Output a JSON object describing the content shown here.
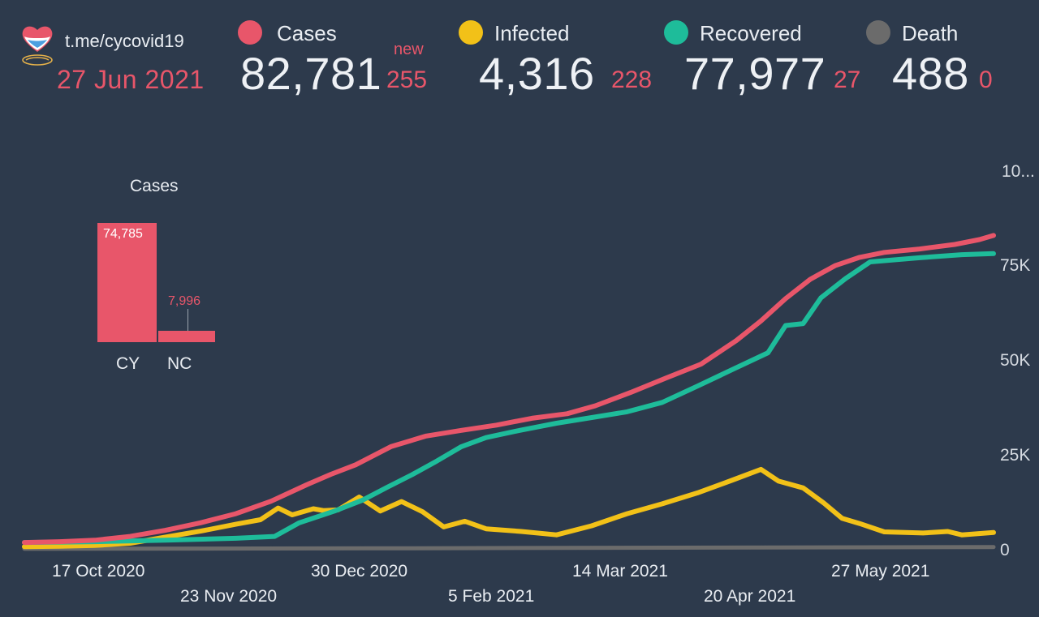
{
  "header": {
    "handle": "t.me/cycovid19",
    "date": "27 Jun 2021",
    "new_word": "new"
  },
  "stats": [
    {
      "key": "cases",
      "label": "Cases",
      "value": "82,781",
      "delta": "255",
      "color": "#e8566a"
    },
    {
      "key": "infected",
      "label": "Infected",
      "value": "4,316",
      "delta": "228",
      "color": "#f2c118"
    },
    {
      "key": "recovered",
      "label": "Recovered",
      "value": "77,977",
      "delta": "27",
      "color": "#1ebc9a"
    },
    {
      "key": "death",
      "label": "Death",
      "value": "488",
      "delta": "0",
      "color": "#6b6b6b"
    }
  ],
  "chart_data": [
    {
      "type": "bar",
      "title": "Cases",
      "categories": [
        "CY",
        "NC"
      ],
      "values": [
        74785,
        7996
      ],
      "value_labels": [
        "74,785",
        "7,996"
      ],
      "color": "#e8566a"
    },
    {
      "type": "line",
      "x_ticks": [
        "17 Oct 2020",
        "23 Nov 2020",
        "30 Dec 2020",
        "5 Feb 2021",
        "14 Mar 2021",
        "20 Apr 2021",
        "27 May 2021"
      ],
      "y_ticks": [
        "0",
        "25K",
        "50K",
        "75K",
        "10..."
      ],
      "ylim": [
        0,
        100000
      ],
      "xlim": [
        "2020-09-25",
        "2021-06-27"
      ],
      "grid": false,
      "series": [
        {
          "name": "Cases",
          "color": "#e8566a",
          "points": [
            [
              "2020-09-25",
              1700
            ],
            [
              "2020-10-05",
              1900
            ],
            [
              "2020-10-15",
              2300
            ],
            [
              "2020-10-25",
              3300
            ],
            [
              "2020-11-04",
              4900
            ],
            [
              "2020-11-14",
              6900
            ],
            [
              "2020-11-24",
              9300
            ],
            [
              "2020-12-04",
              12600
            ],
            [
              "2020-12-14",
              16900
            ],
            [
              "2020-12-21",
              19700
            ],
            [
              "2020-12-28",
              22200
            ],
            [
              "2021-01-07",
              27000
            ],
            [
              "2021-01-17",
              29800
            ],
            [
              "2021-01-27",
              31300
            ],
            [
              "2021-02-06",
              32700
            ],
            [
              "2021-02-16",
              34500
            ],
            [
              "2021-02-26",
              35700
            ],
            [
              "2021-03-06",
              37800
            ],
            [
              "2021-03-16",
              41300
            ],
            [
              "2021-03-26",
              45100
            ],
            [
              "2021-04-05",
              48800
            ],
            [
              "2021-04-15",
              55000
            ],
            [
              "2021-04-22",
              60200
            ],
            [
              "2021-04-29",
              66100
            ],
            [
              "2021-05-06",
              71200
            ],
            [
              "2021-05-13",
              74800
            ],
            [
              "2021-05-20",
              77000
            ],
            [
              "2021-05-27",
              78300
            ],
            [
              "2021-06-06",
              79200
            ],
            [
              "2021-06-16",
              80400
            ],
            [
              "2021-06-23",
              81700
            ],
            [
              "2021-06-27",
              82781
            ]
          ]
        },
        {
          "name": "Infected",
          "color": "#f2c118",
          "points": [
            [
              "2020-09-25",
              600
            ],
            [
              "2020-10-05",
              700
            ],
            [
              "2020-10-15",
              900
            ],
            [
              "2020-10-25",
              1500
            ],
            [
              "2020-11-04",
              3100
            ],
            [
              "2020-11-14",
              4700
            ],
            [
              "2020-11-24",
              6500
            ],
            [
              "2020-12-01",
              7700
            ],
            [
              "2020-12-06",
              10800
            ],
            [
              "2020-12-10",
              9000
            ],
            [
              "2020-12-16",
              10600
            ],
            [
              "2020-12-19",
              10100
            ],
            [
              "2020-12-23",
              10300
            ],
            [
              "2020-12-29",
              13700
            ],
            [
              "2021-01-04",
              10000
            ],
            [
              "2021-01-10",
              12500
            ],
            [
              "2021-01-16",
              9800
            ],
            [
              "2021-01-22",
              5800
            ],
            [
              "2021-01-28",
              7300
            ],
            [
              "2021-02-03",
              5300
            ],
            [
              "2021-02-13",
              4600
            ],
            [
              "2021-02-23",
              3700
            ],
            [
              "2021-03-05",
              6100
            ],
            [
              "2021-03-15",
              9300
            ],
            [
              "2021-03-25",
              11900
            ],
            [
              "2021-04-04",
              14800
            ],
            [
              "2021-04-14",
              18200
            ],
            [
              "2021-04-22",
              21000
            ],
            [
              "2021-04-27",
              17900
            ],
            [
              "2021-05-04",
              16100
            ],
            [
              "2021-05-10",
              12000
            ],
            [
              "2021-05-15",
              8100
            ],
            [
              "2021-05-20",
              6700
            ],
            [
              "2021-05-27",
              4500
            ],
            [
              "2021-06-07",
              4200
            ],
            [
              "2021-06-14",
              4600
            ],
            [
              "2021-06-18",
              3700
            ],
            [
              "2021-06-27",
              4316
            ]
          ]
        },
        {
          "name": "Recovered",
          "color": "#1ebc9a",
          "points": [
            [
              "2020-09-25",
              1700
            ],
            [
              "2020-10-15",
              1900
            ],
            [
              "2020-11-04",
              2300
            ],
            [
              "2020-11-24",
              2800
            ],
            [
              "2020-12-05",
              3300
            ],
            [
              "2020-12-12",
              6900
            ],
            [
              "2020-12-22",
              10000
            ],
            [
              "2020-12-30",
              12900
            ],
            [
              "2021-01-06",
              16300
            ],
            [
              "2021-01-13",
              19600
            ],
            [
              "2021-01-20",
              23200
            ],
            [
              "2021-01-27",
              27000
            ],
            [
              "2021-02-03",
              29400
            ],
            [
              "2021-02-13",
              31400
            ],
            [
              "2021-02-23",
              33200
            ],
            [
              "2021-03-05",
              34700
            ],
            [
              "2021-03-15",
              36200
            ],
            [
              "2021-03-25",
              38700
            ],
            [
              "2021-04-04",
              43000
            ],
            [
              "2021-04-14",
              47400
            ],
            [
              "2021-04-24",
              51800
            ],
            [
              "2021-04-29",
              59000
            ],
            [
              "2021-05-04",
              59500
            ],
            [
              "2021-05-09",
              66300
            ],
            [
              "2021-05-16",
              71400
            ],
            [
              "2021-05-23",
              75800
            ],
            [
              "2021-06-06",
              76900
            ],
            [
              "2021-06-18",
              77700
            ],
            [
              "2021-06-27",
              77977
            ]
          ]
        },
        {
          "name": "Death",
          "color": "#6b6b6b",
          "points": [
            [
              "2020-09-25",
              25
            ],
            [
              "2021-01-01",
              160
            ],
            [
              "2021-06-27",
              488
            ]
          ]
        }
      ]
    }
  ]
}
